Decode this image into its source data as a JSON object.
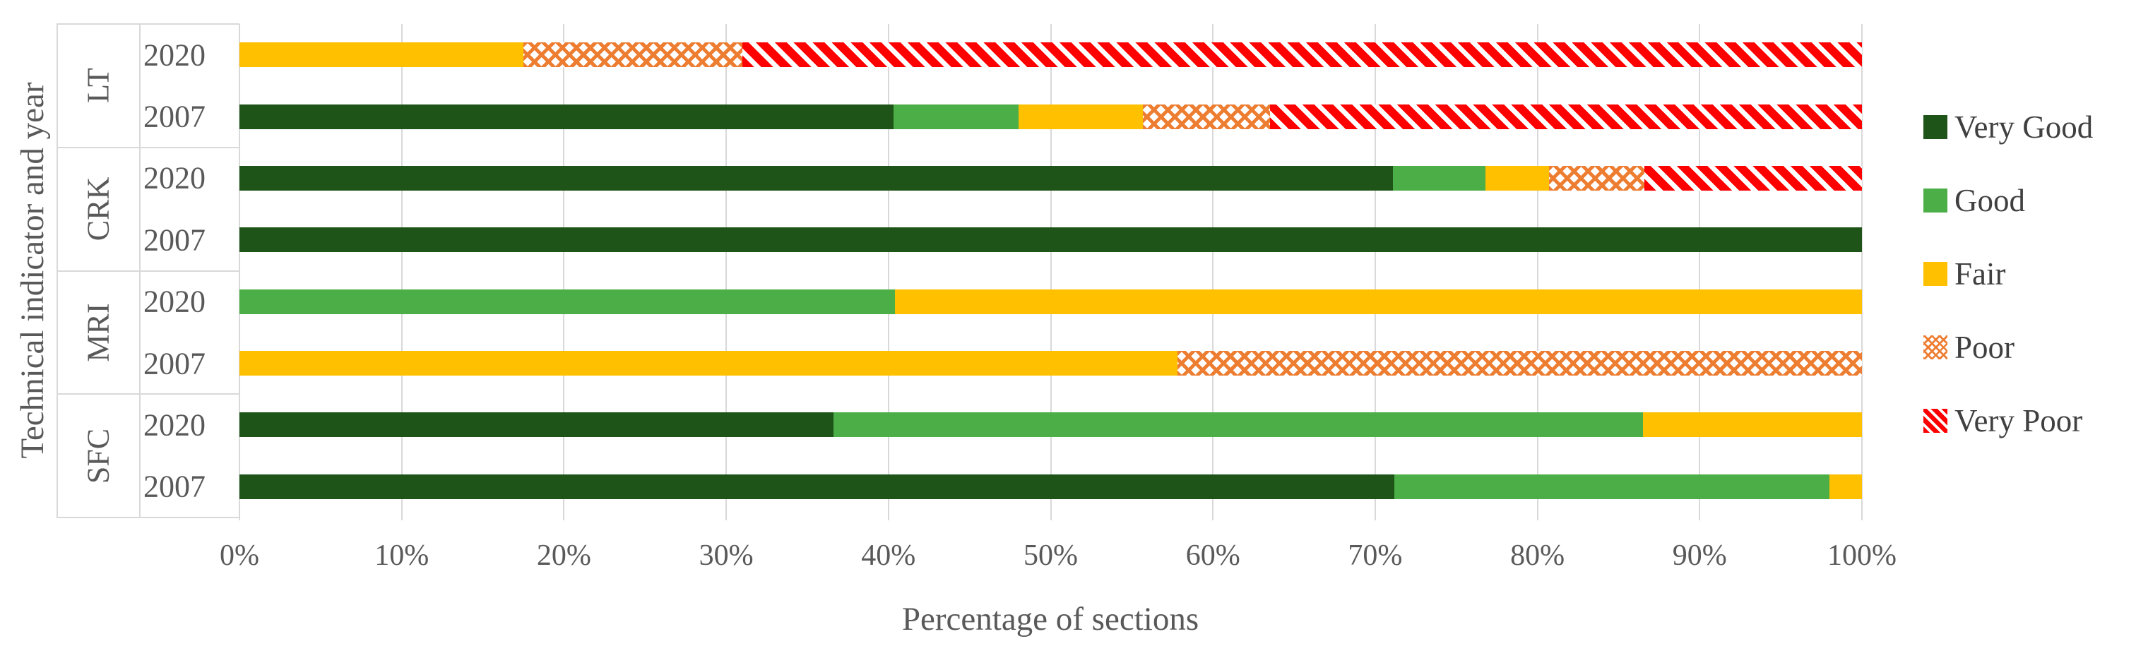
{
  "y_axis": {
    "title": "Technical indicator and year"
  },
  "x_axis": {
    "title": "Percentage of sections",
    "min": 0,
    "max": 100,
    "ticks": [
      "0%",
      "10%",
      "20%",
      "30%",
      "40%",
      "50%",
      "60%",
      "70%",
      "80%",
      "90%",
      "100%"
    ]
  },
  "colors": {
    "very_good": "#1f5418",
    "good": "#4bae46",
    "fair": "#ffc000",
    "poor": "#ed7d31",
    "very_poor": "#ff0000",
    "axis_text": "#595959",
    "legend_text": "#404040",
    "grid": "#d9d9d9",
    "pattern_background": "#ffffff"
  },
  "legend": [
    {
      "key": "very_good",
      "label": "Very Good",
      "fill": "solid"
    },
    {
      "key": "good",
      "label": "Good",
      "fill": "solid"
    },
    {
      "key": "fair",
      "label": "Fair",
      "fill": "solid"
    },
    {
      "key": "poor",
      "label": "Poor",
      "fill": "dotted-diamond-pattern"
    },
    {
      "key": "very_poor",
      "label": "Very Poor",
      "fill": "diagonal-stripe-pattern"
    }
  ],
  "chart_data": {
    "type": "bar",
    "orientation": "horizontal",
    "stacked": true,
    "unit": "percent",
    "xlim": [
      0,
      100
    ],
    "grid": "vertical",
    "legend_position": "right",
    "groups": [
      "LT",
      "CRK",
      "MRI",
      "SFC"
    ],
    "rows": [
      {
        "group": "LT",
        "year": "2020",
        "segments": [
          {
            "key": "fair",
            "value": 17.5
          },
          {
            "key": "poor",
            "value": 13.5
          },
          {
            "key": "very_poor",
            "value": 69.0
          }
        ]
      },
      {
        "group": "LT",
        "year": "2007",
        "segments": [
          {
            "key": "very_good",
            "value": 40.3
          },
          {
            "key": "good",
            "value": 7.7
          },
          {
            "key": "fair",
            "value": 7.7
          },
          {
            "key": "poor",
            "value": 7.8
          },
          {
            "key": "very_poor",
            "value": 36.5
          }
        ]
      },
      {
        "group": "CRK",
        "year": "2020",
        "segments": [
          {
            "key": "very_good",
            "value": 71.1
          },
          {
            "key": "good",
            "value": 5.7
          },
          {
            "key": "fair",
            "value": 3.9
          },
          {
            "key": "poor",
            "value": 5.9
          },
          {
            "key": "very_poor",
            "value": 13.4
          }
        ]
      },
      {
        "group": "CRK",
        "year": "2007",
        "segments": [
          {
            "key": "very_good",
            "value": 100.0
          }
        ]
      },
      {
        "group": "MRI",
        "year": "2020",
        "segments": [
          {
            "key": "good",
            "value": 40.4
          },
          {
            "key": "fair",
            "value": 59.6
          }
        ]
      },
      {
        "group": "MRI",
        "year": "2007",
        "segments": [
          {
            "key": "fair",
            "value": 57.8
          },
          {
            "key": "poor",
            "value": 42.2
          }
        ]
      },
      {
        "group": "SFC",
        "year": "2020",
        "segments": [
          {
            "key": "very_good",
            "value": 36.6
          },
          {
            "key": "good",
            "value": 49.9
          },
          {
            "key": "fair",
            "value": 13.5
          }
        ]
      },
      {
        "group": "SFC",
        "year": "2007",
        "segments": [
          {
            "key": "very_good",
            "value": 71.2
          },
          {
            "key": "good",
            "value": 26.8
          },
          {
            "key": "fair",
            "value": 2.0
          }
        ]
      }
    ]
  }
}
